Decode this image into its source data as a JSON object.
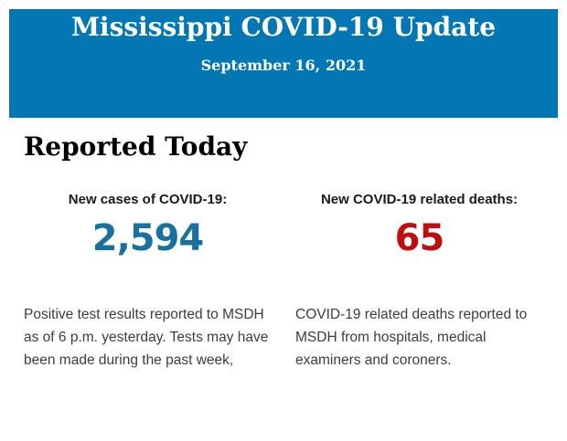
{
  "colors": {
    "banner_bg": "#0277b4",
    "banner_text": "#ffffff",
    "heading_text": "#000000",
    "label_text": "#1a1a1a",
    "body_text": "#3d3d3d",
    "cases_number": "#19719f",
    "deaths_number": "#c00d0d"
  },
  "header": {
    "title": "Mississippi COVID-19 Update",
    "date": "September 16, 2021"
  },
  "main": {
    "heading": "Reported Today",
    "stats": [
      {
        "label": "New cases of COVID-19:",
        "value": "2,594",
        "description": "Positive test results reported to MSDH as of 6 p.m. yesterday. Tests may have been made during the past week,"
      },
      {
        "label": "New COVID-19 related deaths:",
        "value": "65",
        "description": "COVID-19 related deaths reported to MSDH from hospitals, medical examiners and coroners."
      }
    ]
  }
}
